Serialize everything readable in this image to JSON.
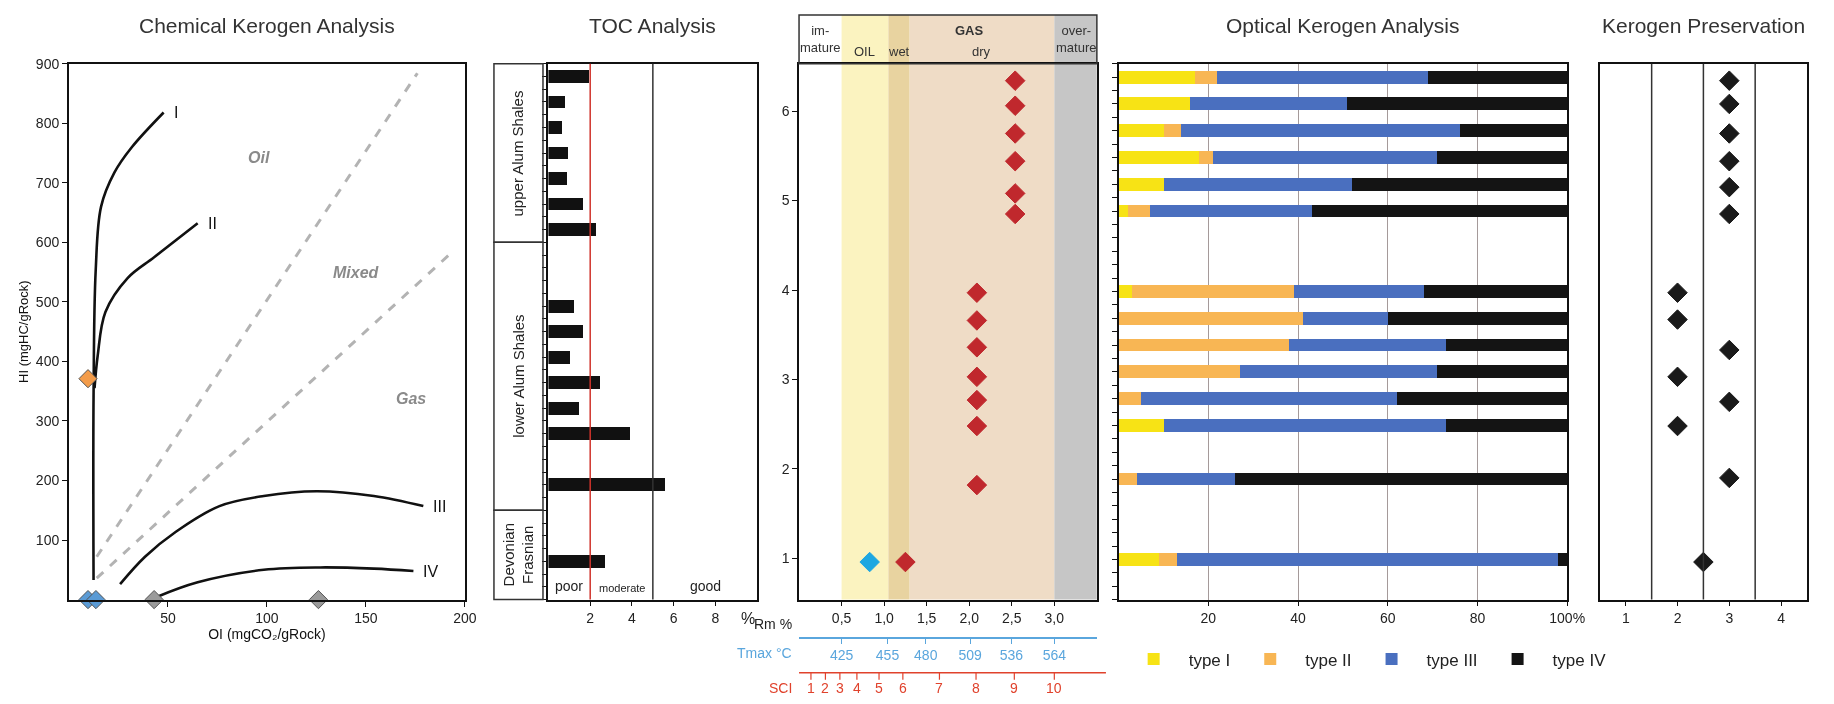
{
  "chart_data": [
    {
      "type": "scatter",
      "title": "Chemical Kerogen Analysis",
      "xlabel": "OI (mgCO₂/gRock)",
      "ylabel": "HI (mgHC/gRock)",
      "xlim": [
        0,
        200
      ],
      "ylim": [
        0,
        900
      ],
      "xticks": [
        50,
        100,
        150,
        200
      ],
      "yticks": [
        100,
        200,
        300,
        400,
        500,
        600,
        700,
        800,
        900
      ],
      "grid": false,
      "marker": "diamond",
      "line_style": "solid",
      "annotations": [
        "Oil",
        "Mixed",
        "Gas"
      ],
      "series": [
        {
          "type": "line",
          "name": "I",
          "color": "#111111",
          "marker": "none",
          "x": [
            12.4,
            12.4,
            13.5,
            16.2,
            22.9,
            31.8,
            47.8
          ],
          "values": [
            33,
            341,
            554,
            660,
            717,
            760,
            818
          ]
        },
        {
          "type": "line",
          "name": "II",
          "color": "#111111",
          "marker": "none",
          "x": [
            12.9,
            14.5,
            18.4,
            29.6,
            43,
            65
          ],
          "values": [
            355,
            410,
            483,
            540,
            575,
            632
          ]
        },
        {
          "type": "line",
          "name": "III",
          "color": "#111111",
          "marker": "none",
          "x": [
            25.8,
            38.4,
            54,
            76,
            98.4,
            125,
            154,
            179
          ],
          "values": [
            26,
            72,
            114,
            157,
            174,
            182,
            174,
            157
          ]
        },
        {
          "type": "line",
          "name": "IV",
          "color": "#111111",
          "marker": "none",
          "x": [
            44,
            65,
            98.4,
            127,
            154,
            174
          ],
          "values": [
            4,
            29,
            50,
            54,
            52,
            48
          ]
        },
        {
          "type": "line",
          "color": "#b3b3b3",
          "marker": "none",
          "line_style": "dashed",
          "x": [
            14,
            176
          ],
          "values": [
            72,
            884
          ]
        },
        {
          "type": "line",
          "color": "#b3b3b3",
          "marker": "none",
          "line_style": "dashed",
          "x": [
            14,
            193
          ],
          "values": [
            36,
            582
          ]
        },
        {
          "type": "scatter",
          "color": "#f39c4a",
          "x": [
            9.6
          ],
          "values": [
            371
          ]
        },
        {
          "type": "scatter",
          "color": "#5b9bd5",
          "x": [
            9.6,
            13.6
          ],
          "values": [
            0,
            0
          ]
        },
        {
          "type": "scatter",
          "color": "#9a9a9a",
          "x": [
            43,
            126
          ],
          "values": [
            0,
            0
          ]
        }
      ]
    },
    {
      "type": "bar",
      "title": "TOC Analysis",
      "orientation": "horizontal",
      "xlabel": "%",
      "xlim": [
        0,
        10
      ],
      "xticks": [
        2,
        4,
        6,
        8
      ],
      "tick_labels": "x",
      "grid": false,
      "categories": [
        null,
        null,
        null,
        null,
        null,
        null,
        null,
        null,
        null,
        null,
        null,
        null,
        null,
        null,
        null,
        null,
        null,
        null,
        null,
        null,
        null
      ],
      "annotations": [
        "upper Alum Shales",
        "lower Alum Shales",
        "Devonian\nFrasnian",
        "poor",
        "moderate",
        "good"
      ],
      "ref_lines": [
        {
          "axis": "x",
          "value": 2,
          "color": "#d0342c"
        },
        {
          "axis": "x",
          "value": 5,
          "color": "#333333"
        }
      ],
      "series": [
        {
          "color": "#111111",
          "values": [
            1.96,
            0.8,
            0.65,
            0.96,
            0.91,
            1.67,
            2.26,
            null,
            null,
            1.24,
            1.67,
            1.02,
            2.48,
            1.46,
            3.9,
            null,
            5.6,
            null,
            null,
            2.7,
            null
          ]
        }
      ]
    },
    {
      "type": "scatter",
      "xlabel": "Rm %",
      "x2label": "Tmax °C",
      "xlim": [
        0,
        3.5
      ],
      "ylim": [
        0.54,
        6.53
      ],
      "marker": "diamond",
      "grid": false,
      "xticks": [
        {
          "value": 0.5,
          "label": "0,5"
        },
        {
          "value": 1.0,
          "label": "1,0"
        },
        {
          "value": 1.5,
          "label": "1,5"
        },
        {
          "value": 2.0,
          "label": "2,0"
        },
        {
          "value": 2.5,
          "label": "2,5"
        },
        {
          "value": 3.0,
          "label": "3,0"
        }
      ],
      "yticks": [
        1,
        2,
        3,
        4,
        5,
        6
      ],
      "x2lim": [
        397.2,
        591.8
      ],
      "x2ticks": [
        425,
        455,
        480,
        509,
        536,
        564
      ],
      "annotations": [
        "im-\nmature",
        "GAS",
        "SCI",
        "1",
        "2",
        "3",
        "4",
        "5",
        "6",
        "7",
        "8",
        "9",
        "10"
      ],
      "bands": [
        {
          "axis": "x",
          "from": 0.5,
          "to": 1.05,
          "label": "OIL",
          "color": "#fbf3c0"
        },
        {
          "axis": "x",
          "from": 1.05,
          "to": 1.3,
          "label": "wet",
          "color": "#e8d3a0"
        },
        {
          "axis": "x",
          "from": 1.3,
          "to": 3.0,
          "label": "dry",
          "color": "#efdcc6"
        },
        {
          "axis": "x",
          "from": 3.0,
          "to": 3.5,
          "label": "over-\nmature",
          "color": "#c6c6c6"
        }
      ],
      "series": [
        {
          "color": "#1ea7e1",
          "x": [
            0.83
          ],
          "values": [
            0.96
          ]
        },
        {
          "color": "#c0282d",
          "x": [
            2.54,
            2.54,
            2.54,
            2.54,
            2.54,
            2.54,
            2.09,
            2.09,
            2.09,
            2.09,
            2.09,
            2.09,
            2.09,
            1.25
          ],
          "values": [
            6.34,
            6.06,
            5.75,
            5.44,
            5.08,
            4.85,
            3.97,
            3.66,
            3.36,
            3.03,
            2.77,
            2.48,
            1.82,
            0.96
          ]
        }
      ]
    },
    {
      "type": "bar",
      "title": "Optical Kerogen Analysis",
      "orientation": "horizontal",
      "stacked": true,
      "xlim": [
        0,
        100
      ],
      "xticks": [
        20,
        40,
        60,
        80,
        {
          "value": 100,
          "label": "100%"
        }
      ],
      "tick_labels": "x",
      "grid": "x",
      "legend": "bottom",
      "categories": [
        null,
        null,
        null,
        null,
        null,
        null,
        null,
        null,
        null,
        null,
        null,
        null,
        null,
        null,
        null,
        null,
        null,
        null,
        null,
        null
      ],
      "series": [
        {
          "name": "type I",
          "color": "#f7e315",
          "values": [
            17,
            16,
            10,
            18,
            10,
            2,
            null,
            null,
            3,
            0,
            0,
            0,
            0,
            10,
            null,
            0,
            null,
            null,
            9,
            null
          ]
        },
        {
          "name": "type II",
          "color": "#f8b654",
          "values": [
            5,
            0,
            4,
            3,
            0,
            5,
            null,
            null,
            36,
            41,
            38,
            27,
            5,
            0,
            null,
            4,
            null,
            null,
            4,
            null
          ]
        },
        {
          "name": "type III",
          "color": "#4a6fbf",
          "values": [
            47,
            35,
            62,
            50,
            42,
            36,
            null,
            null,
            29,
            19,
            35,
            44,
            57,
            63,
            null,
            22,
            null,
            null,
            85,
            null
          ]
        },
        {
          "name": "type IV",
          "color": "#141414",
          "values": [
            31,
            49,
            24,
            29,
            48,
            57,
            null,
            null,
            32,
            40,
            27,
            29,
            38,
            27,
            null,
            74,
            null,
            null,
            2,
            null
          ]
        }
      ]
    },
    {
      "type": "scatter",
      "title": "Kerogen Preservation",
      "xlim": [
        0.5,
        4.5
      ],
      "xticks": [
        1,
        2,
        3,
        4
      ],
      "ylim": [
        0.54,
        6.53
      ],
      "tick_labels": "x",
      "marker": "diamond",
      "grid": false,
      "ref_lines": [
        {
          "axis": "x",
          "value": 1.5,
          "color": "#333333"
        },
        {
          "axis": "x",
          "value": 2.5,
          "color": "#333333"
        },
        {
          "axis": "x",
          "value": 3.5,
          "color": "#333333"
        }
      ],
      "series": [
        {
          "color": "#1a1a1a",
          "x": [
            3,
            3,
            3,
            3,
            3,
            3,
            2,
            2,
            3,
            2,
            3,
            2,
            3,
            2.5
          ],
          "values": [
            6.34,
            6.08,
            5.75,
            5.44,
            5.15,
            4.85,
            3.97,
            3.67,
            3.33,
            3.03,
            2.75,
            2.48,
            1.9,
            0.96
          ]
        }
      ]
    }
  ]
}
